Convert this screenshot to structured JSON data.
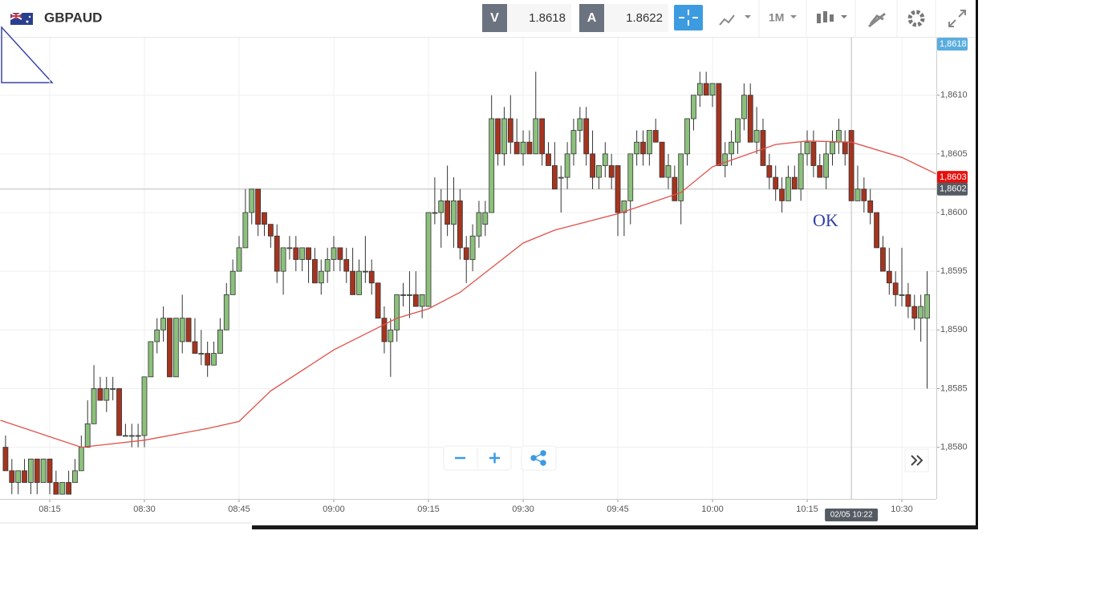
{
  "header": {
    "title": "GBPAUD",
    "bid_label": "V",
    "bid": "1.8618",
    "ask_label": "A",
    "ask": "1.8622",
    "timeframe": "1M"
  },
  "chart_data": {
    "type": "candlestick",
    "annotation": "OK",
    "last_price_label": "1,8618",
    "up_color": "#8cc07c",
    "down_color": "#a5341f",
    "grid": true,
    "xlim": [
      487.12,
      635.46
    ],
    "xticks": [
      {
        "value": 495,
        "label": "08:15"
      },
      {
        "value": 510,
        "label": "08:30"
      },
      {
        "value": 525,
        "label": "08:45"
      },
      {
        "value": 540,
        "label": "09:00"
      },
      {
        "value": 555,
        "label": "09:15"
      },
      {
        "value": 570,
        "label": "09:30"
      },
      {
        "value": 585,
        "label": "09:45"
      },
      {
        "value": 600,
        "label": "10:00"
      },
      {
        "value": 615,
        "label": "10:15"
      },
      {
        "value": 630,
        "label": "10:30"
      }
    ],
    "ylim": [
      1.85756,
      1.86149
    ],
    "yticks": [
      {
        "value": 1.858,
        "label": "1,8580"
      },
      {
        "value": 1.8585,
        "label": "1,8585"
      },
      {
        "value": 1.859,
        "label": "1,8590"
      },
      {
        "value": 1.8595,
        "label": "1,8595"
      },
      {
        "value": 1.86,
        "label": "1,8600"
      },
      {
        "value": 1.8605,
        "label": "1,8605"
      },
      {
        "value": 1.861,
        "label": "1,8610"
      }
    ],
    "x": [
      488,
      489,
      490,
      491,
      492,
      493,
      494,
      495,
      496,
      497,
      498,
      499,
      500,
      501,
      502,
      503,
      504,
      505,
      506,
      507,
      508,
      509,
      510,
      511,
      512,
      513,
      514,
      515,
      516,
      517,
      518,
      519,
      520,
      521,
      522,
      523,
      524,
      525,
      526,
      527,
      528,
      529,
      530,
      531,
      532,
      533,
      534,
      535,
      536,
      537,
      538,
      539,
      540,
      541,
      542,
      543,
      544,
      545,
      546,
      547,
      548,
      549,
      550,
      551,
      552,
      553,
      554,
      555,
      556,
      557,
      558,
      559,
      560,
      561,
      562,
      563,
      564,
      565,
      566,
      567,
      568,
      569,
      570,
      571,
      572,
      573,
      574,
      575,
      576,
      577,
      578,
      579,
      580,
      581,
      582,
      583,
      584,
      585,
      586,
      587,
      588,
      589,
      590,
      591,
      592,
      593,
      594,
      595,
      596,
      597,
      598,
      599,
      600,
      601,
      602,
      603,
      604,
      605,
      606,
      607,
      608,
      609,
      610,
      611,
      612,
      613,
      614,
      615,
      616,
      617,
      618,
      619,
      620,
      621,
      622,
      623,
      624,
      625,
      626,
      627,
      628,
      629,
      630,
      631,
      632,
      633,
      634
    ],
    "open": [
      1.858,
      1.8578,
      1.8577,
      1.8578,
      1.8577,
      1.8579,
      1.8577,
      1.8579,
      1.8577,
      1.8576,
      1.8577,
      1.8577,
      1.8578,
      1.858,
      1.8582,
      1.8585,
      1.8584,
      1.8585,
      1.8585,
      1.8581,
      1.8581,
      1.8581,
      1.8581,
      1.8586,
      1.8589,
      1.859,
      1.8591,
      1.8586,
      1.8589,
      1.8591,
      1.8589,
      1.8588,
      1.8588,
      1.8587,
      1.8588,
      1.859,
      1.8593,
      1.8595,
      1.8597,
      1.86,
      1.8602,
      1.86,
      1.8599,
      1.8598,
      1.8595,
      1.8597,
      1.8597,
      1.8596,
      1.8597,
      1.8596,
      1.8594,
      1.8595,
      1.8596,
      1.8597,
      1.8596,
      1.8595,
      1.8593,
      1.8595,
      1.8595,
      1.8594,
      1.8591,
      1.8589,
      1.859,
      1.8593,
      1.8593,
      1.8593,
      1.8592,
      1.8592,
      1.86,
      1.86,
      1.8601,
      1.8599,
      1.8601,
      1.8597,
      1.8596,
      1.8598,
      1.8599,
      1.86,
      1.8608,
      1.8605,
      1.8608,
      1.8606,
      1.8605,
      1.8606,
      1.8605,
      1.8608,
      1.8605,
      1.8604,
      1.8603,
      1.8603,
      1.8605,
      1.8607,
      1.8608,
      1.8605,
      1.8603,
      1.8604,
      1.8604,
      1.8604,
      1.86,
      1.8601,
      1.8605,
      1.8606,
      1.8605,
      1.8607,
      1.8606,
      1.8603,
      1.8603,
      1.8601,
      1.8605,
      1.8608,
      1.861,
      1.8611,
      1.861,
      1.8611,
      1.8604,
      1.8605,
      1.8606,
      1.8608,
      1.861,
      1.8606,
      1.8607,
      1.8604,
      1.8603,
      1.8602,
      1.8601,
      1.8603,
      1.8602,
      1.8605,
      1.8606,
      1.8604,
      1.8603,
      1.8605,
      1.8606,
      1.8606,
      1.8607,
      1.8601,
      1.8602,
      1.8601,
      1.86,
      1.8597,
      1.8595,
      1.8594,
      1.8593,
      1.8593,
      1.8592,
      1.8591,
      1.8591
    ],
    "high": [
      1.8581,
      1.8579,
      1.8578,
      1.8579,
      1.8579,
      1.8579,
      1.8579,
      1.8579,
      1.8578,
      1.8577,
      1.8578,
      1.8579,
      1.8581,
      1.8584,
      1.8587,
      1.8586,
      1.8586,
      1.8586,
      1.8585,
      1.8582,
      1.8582,
      1.8582,
      1.8586,
      1.8589,
      1.8591,
      1.8592,
      1.8591,
      1.8591,
      1.8593,
      1.8591,
      1.8591,
      1.859,
      1.8589,
      1.8589,
      1.8591,
      1.8594,
      1.8596,
      1.8598,
      1.8602,
      1.8602,
      1.8602,
      1.86,
      1.8599,
      1.8599,
      1.8597,
      1.8598,
      1.8598,
      1.8597,
      1.8597,
      1.8597,
      1.8596,
      1.8597,
      1.8598,
      1.8597,
      1.8597,
      1.8597,
      1.8596,
      1.8598,
      1.8596,
      1.8594,
      1.8592,
      1.8591,
      1.8593,
      1.8594,
      1.8595,
      1.8595,
      1.8593,
      1.86,
      1.8603,
      1.8602,
      1.8604,
      1.8603,
      1.8602,
      1.8598,
      1.8599,
      1.8601,
      1.8601,
      1.861,
      1.8608,
      1.8609,
      1.861,
      1.8608,
      1.8607,
      1.8607,
      1.8612,
      1.8608,
      1.8606,
      1.8606,
      1.8604,
      1.8606,
      1.8608,
      1.8609,
      1.8609,
      1.8607,
      1.8604,
      1.8606,
      1.8605,
      1.8604,
      1.8601,
      1.8605,
      1.8607,
      1.8607,
      1.8607,
      1.8608,
      1.8606,
      1.8605,
      1.8604,
      1.8605,
      1.8608,
      1.861,
      1.8612,
      1.8612,
      1.8611,
      1.8611,
      1.8606,
      1.8607,
      1.8608,
      1.8611,
      1.8611,
      1.8609,
      1.8608,
      1.8605,
      1.8604,
      1.8603,
      1.8604,
      1.8604,
      1.8606,
      1.8607,
      1.8607,
      1.8605,
      1.8606,
      1.8607,
      1.8608,
      1.8607,
      1.8607,
      1.8604,
      1.8603,
      1.8602,
      1.86,
      1.8598,
      1.8597,
      1.8595,
      1.8597,
      1.8594,
      1.8593,
      1.8593,
      1.8595
    ],
    "low": [
      1.8578,
      1.8576,
      1.8576,
      1.8577,
      1.8576,
      1.8576,
      1.8577,
      1.8576,
      1.8576,
      1.8576,
      1.8576,
      1.8577,
      1.8578,
      1.858,
      1.8582,
      1.8584,
      1.8583,
      1.8584,
      1.8581,
      1.8581,
      1.858,
      1.858,
      1.858,
      1.8586,
      1.8588,
      1.8589,
      1.8586,
      1.8586,
      1.8588,
      1.8589,
      1.8588,
      1.8587,
      1.8586,
      1.8587,
      1.8588,
      1.859,
      1.8593,
      1.8595,
      1.8597,
      1.8599,
      1.8598,
      1.8598,
      1.8597,
      1.8594,
      1.8593,
      1.8596,
      1.8595,
      1.8595,
      1.8594,
      1.8594,
      1.8593,
      1.8594,
      1.8595,
      1.8595,
      1.8594,
      1.8593,
      1.8593,
      1.8594,
      1.8593,
      1.8591,
      1.8588,
      1.8586,
      1.8589,
      1.8592,
      1.8591,
      1.8592,
      1.8591,
      1.8592,
      1.8599,
      1.8597,
      1.8598,
      1.8597,
      1.8596,
      1.8594,
      1.8595,
      1.8597,
      1.8598,
      1.86,
      1.8604,
      1.8604,
      1.8605,
      1.8605,
      1.8604,
      1.8605,
      1.8605,
      1.8604,
      1.8604,
      1.8602,
      1.86,
      1.8602,
      1.8604,
      1.8606,
      1.8604,
      1.8602,
      1.8602,
      1.8603,
      1.8602,
      1.8598,
      1.8598,
      1.8599,
      1.8604,
      1.8604,
      1.8604,
      1.8606,
      1.8603,
      1.8602,
      1.8601,
      1.8599,
      1.8604,
      1.8607,
      1.8609,
      1.861,
      1.8609,
      1.8604,
      1.8603,
      1.8604,
      1.8605,
      1.8607,
      1.8606,
      1.8605,
      1.8604,
      1.8602,
      1.8601,
      1.86,
      1.8601,
      1.8602,
      1.8601,
      1.8604,
      1.8603,
      1.8603,
      1.8602,
      1.8604,
      1.8605,
      1.8604,
      1.8601,
      1.8601,
      1.86,
      1.8599,
      1.8597,
      1.8595,
      1.8593,
      1.8592,
      1.8592,
      1.8591,
      1.859,
      1.8589,
      1.8585
    ],
    "close": [
      1.8578,
      1.8577,
      1.8578,
      1.8577,
      1.8579,
      1.8577,
      1.8579,
      1.8577,
      1.8576,
      1.8577,
      1.8576,
      1.8578,
      1.858,
      1.8582,
      1.8585,
      1.8584,
      1.8585,
      1.8585,
      1.8581,
      1.8581,
      1.8581,
      1.8581,
      1.8586,
      1.8589,
      1.859,
      1.8591,
      1.8586,
      1.8591,
      1.8591,
      1.8589,
      1.8588,
      1.8588,
      1.8587,
      1.8588,
      1.859,
      1.8593,
      1.8595,
      1.8597,
      1.86,
      1.8602,
      1.8599,
      1.8599,
      1.8598,
      1.8595,
      1.8597,
      1.8597,
      1.8596,
      1.8597,
      1.8596,
      1.8594,
      1.8595,
      1.8596,
      1.8597,
      1.8596,
      1.8595,
      1.8593,
      1.8595,
      1.8595,
      1.8594,
      1.8591,
      1.8589,
      1.859,
      1.8593,
      1.8593,
      1.8593,
      1.8592,
      1.8593,
      1.86,
      1.86,
      1.8601,
      1.8599,
      1.8601,
      1.8597,
      1.8596,
      1.8598,
      1.86,
      1.86,
      1.8608,
      1.8605,
      1.8608,
      1.8606,
      1.8605,
      1.8606,
      1.8605,
      1.8608,
      1.8605,
      1.8604,
      1.8602,
      1.8603,
      1.8605,
      1.8607,
      1.8608,
      1.8605,
      1.8603,
      1.8604,
      1.8605,
      1.8603,
      1.86,
      1.8601,
      1.8605,
      1.8606,
      1.8605,
      1.8607,
      1.8606,
      1.8603,
      1.8604,
      1.8601,
      1.8605,
      1.8608,
      1.861,
      1.8611,
      1.861,
      1.8611,
      1.8604,
      1.8605,
      1.8606,
      1.8608,
      1.861,
      1.8606,
      1.8607,
      1.8604,
      1.8603,
      1.8602,
      1.8601,
      1.8603,
      1.8602,
      1.8605,
      1.8606,
      1.8604,
      1.8603,
      1.8605,
      1.8606,
      1.8607,
      1.8605,
      1.8601,
      1.8602,
      1.8601,
      1.86,
      1.8597,
      1.8595,
      1.8594,
      1.8593,
      1.8593,
      1.8592,
      1.8591,
      1.8592,
      1.8593
    ],
    "moving_average": {
      "color": "#e0504a",
      "x": [
        487.2,
        500,
        510,
        520,
        525,
        530,
        540,
        550,
        555,
        560,
        570,
        575,
        585,
        595,
        600,
        610,
        615,
        622,
        630,
        635.4
      ],
      "values": [
        1.85823,
        1.858,
        1.85806,
        1.85816,
        1.85822,
        1.85848,
        1.85883,
        1.8591,
        1.85918,
        1.85932,
        1.85974,
        1.85985,
        1.85999,
        1.86017,
        1.86039,
        1.86058,
        1.86061,
        1.8606,
        1.86047,
        1.86033
      ],
      "label": {
        "value": 1.8603,
        "label": "1,8603"
      }
    },
    "crosshair": {
      "x": 622,
      "x_label": "02/05 10:22",
      "y": 1.8602,
      "y_label": "1,8602"
    }
  }
}
